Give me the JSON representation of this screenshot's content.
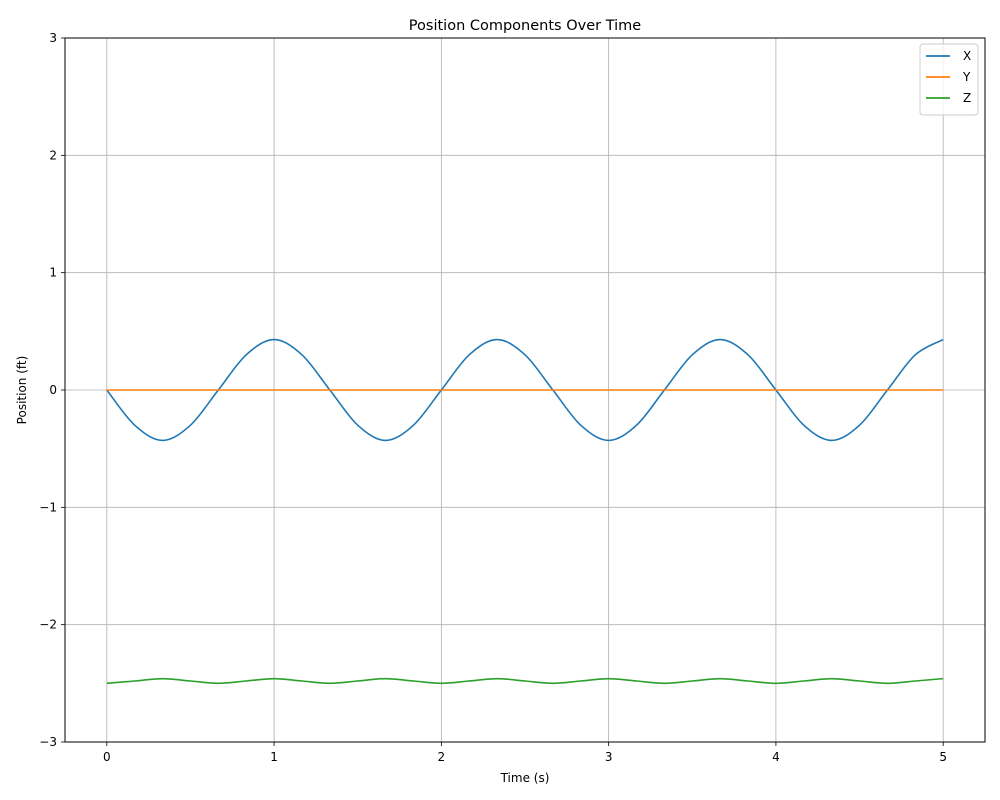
{
  "chart_data": {
    "type": "line",
    "title": "Position Components Over Time",
    "xlabel": "Time (s)",
    "ylabel": "Position (ft)",
    "xlim": [
      -0.25,
      5.25
    ],
    "ylim": [
      -3,
      3
    ],
    "x_ticks": [
      0,
      1,
      2,
      3,
      4,
      5
    ],
    "x_tick_labels": [
      "0",
      "1",
      "2",
      "3",
      "4",
      "5"
    ],
    "y_ticks": [
      -3,
      -2,
      -1,
      0,
      1,
      2,
      3
    ],
    "y_tick_labels": [
      "−3",
      "−2",
      "−1",
      "0",
      "1",
      "2",
      "3"
    ],
    "grid": true,
    "legend_position": "top-right",
    "x": [
      0,
      0.1667,
      0.3333,
      0.5,
      0.6667,
      0.8333,
      1.0,
      1.1667,
      1.3333,
      1.5,
      1.6667,
      1.8333,
      2.0,
      2.1667,
      2.3333,
      2.5,
      2.6667,
      2.8333,
      3.0,
      3.1667,
      3.3333,
      3.5,
      3.6667,
      3.8333,
      4.0,
      4.1667,
      4.3333,
      4.5,
      4.6667,
      4.8333,
      5.0
    ],
    "series": [
      {
        "name": "X",
        "color": "#1f77b4",
        "values": [
          0,
          -0.3,
          -0.43,
          -0.3,
          0,
          0.3,
          0.43,
          0.3,
          0,
          -0.3,
          -0.43,
          -0.3,
          0,
          0.3,
          0.43,
          0.3,
          0,
          -0.3,
          -0.43,
          -0.3,
          0,
          0.3,
          0.43,
          0.3,
          0,
          -0.3,
          -0.43,
          -0.3,
          0,
          0.3,
          0.43
        ]
      },
      {
        "name": "Y",
        "color": "#ff7f0e",
        "values": [
          0,
          0,
          0,
          0,
          0,
          0,
          0,
          0,
          0,
          0,
          0,
          0,
          0,
          0,
          0,
          0,
          0,
          0,
          0,
          0,
          0,
          0,
          0,
          0,
          0,
          0,
          0,
          0,
          0,
          0,
          0
        ]
      },
      {
        "name": "Z",
        "color": "#2ca02c",
        "values": [
          -2.5,
          -2.48,
          -2.46,
          -2.48,
          -2.5,
          -2.48,
          -2.46,
          -2.48,
          -2.5,
          -2.48,
          -2.46,
          -2.48,
          -2.5,
          -2.48,
          -2.46,
          -2.48,
          -2.5,
          -2.48,
          -2.46,
          -2.48,
          -2.5,
          -2.48,
          -2.46,
          -2.48,
          -2.5,
          -2.48,
          -2.46,
          -2.48,
          -2.5,
          -2.48,
          -2.46
        ]
      }
    ]
  }
}
